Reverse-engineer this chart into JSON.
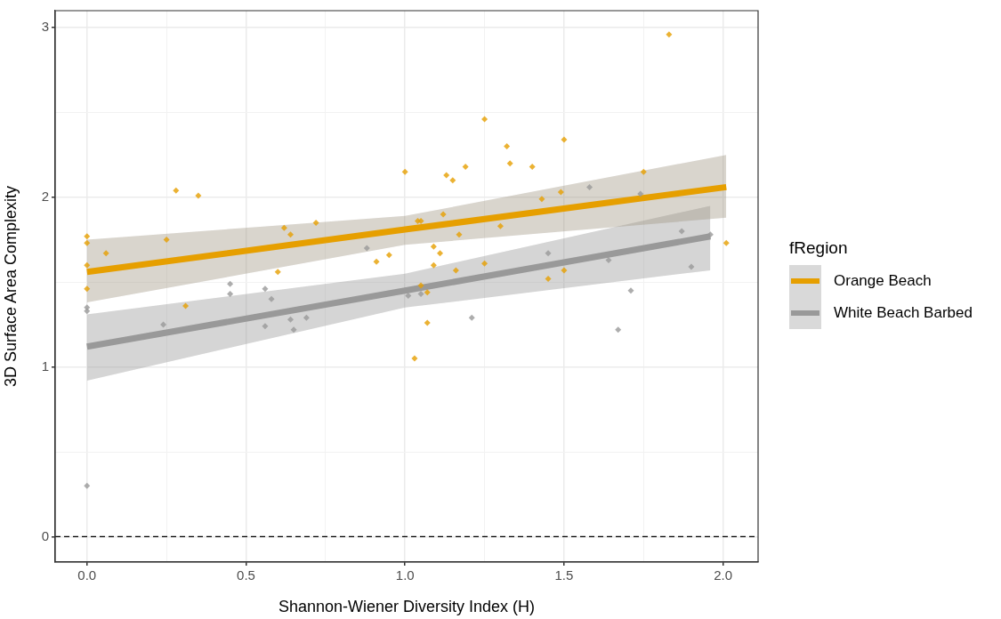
{
  "chart_data": {
    "type": "scatter",
    "xlabel": "Shannon-Wiener Diversity Index (H)",
    "ylabel": "3D Surface Area Complexity",
    "legend_title": "fRegion",
    "xlim": [
      -0.1,
      2.11
    ],
    "ylim": [
      -0.15,
      3.1
    ],
    "xticks": [
      {
        "value": 0,
        "label": "0.0"
      },
      {
        "value": 0.25,
        "label": null
      },
      {
        "value": 0.5,
        "label": "0.5"
      },
      {
        "value": 0.75,
        "label": null
      },
      {
        "value": 1,
        "label": "1.0"
      },
      {
        "value": 1.25,
        "label": null
      },
      {
        "value": 1.5,
        "label": "1.5"
      },
      {
        "value": 1.75,
        "label": null
      },
      {
        "value": 2,
        "label": "2.0"
      }
    ],
    "yticks": [
      0,
      {
        "value": 0.5,
        "label": null
      },
      1,
      {
        "value": 1.5,
        "label": null
      },
      2,
      {
        "value": 2.5,
        "label": null
      },
      3
    ],
    "grid": true,
    "legend": "right",
    "marker": "diamond",
    "ref_lines": [
      {
        "axis": "y",
        "value": 0,
        "color": "#000000",
        "line_style": "dashed"
      }
    ],
    "series": [
      {
        "color": "#e69f00",
        "x": [
          0,
          0,
          0,
          0,
          0.06,
          0.28,
          0.35,
          0.25,
          0.31,
          0.62,
          0.64,
          0.6,
          0.72,
          0.91,
          0.95,
          1.0,
          1.25,
          1.32,
          1.33,
          1.4,
          1.5,
          1.13,
          1.15,
          1.19,
          1.04,
          1.05,
          1.12,
          1.17,
          1.3,
          1.43,
          1.49,
          1.75,
          1.09,
          1.11,
          1.09,
          1.16,
          1.25,
          1.45,
          1.5,
          1.05,
          1.07,
          1.07,
          1.03,
          2.01,
          1.83
        ],
        "values": [
          1.77,
          1.73,
          1.6,
          1.46,
          1.67,
          2.04,
          2.01,
          1.75,
          1.36,
          1.82,
          1.78,
          1.56,
          1.85,
          1.62,
          1.66,
          2.15,
          2.46,
          2.3,
          2.2,
          2.18,
          2.34,
          2.13,
          2.1,
          2.18,
          1.86,
          1.86,
          1.9,
          1.78,
          1.83,
          1.99,
          2.03,
          2.15,
          1.71,
          1.67,
          1.6,
          1.57,
          1.61,
          1.52,
          1.57,
          1.48,
          1.44,
          1.26,
          1.05,
          1.73,
          2.96
        ]
      },
      {
        "color": "#999999",
        "x": [
          0,
          0,
          0,
          0.24,
          0.45,
          0.45,
          0.56,
          0.58,
          0.56,
          0.64,
          0.65,
          0.69,
          0.88,
          1.01,
          1.05,
          1.21,
          1.45,
          1.58,
          1.64,
          1.67,
          1.71,
          1.74,
          1.87,
          1.9,
          1.96
        ],
        "values": [
          1.35,
          1.33,
          0.3,
          1.25,
          1.49,
          1.43,
          1.46,
          1.4,
          1.24,
          1.28,
          1.22,
          1.29,
          1.7,
          1.42,
          1.43,
          1.29,
          1.67,
          2.06,
          1.63,
          1.22,
          1.45,
          2.02,
          1.8,
          1.59,
          1.78
        ]
      },
      {
        "type": "line",
        "name": "Orange Beach",
        "color": "#e69f00",
        "marker": "none",
        "x": [
          0,
          1,
          2.01
        ],
        "values": [
          1.56,
          1.81,
          2.06
        ],
        "lower": [
          1.38,
          1.72,
          1.88
        ],
        "upper": [
          1.75,
          1.89,
          2.25
        ]
      },
      {
        "type": "line",
        "name": "White Beach Barbed",
        "color": "#999999",
        "marker": "none",
        "x": [
          0,
          1,
          1.96
        ],
        "values": [
          1.12,
          1.45,
          1.77
        ],
        "lower": [
          0.92,
          1.35,
          1.57
        ],
        "upper": [
          1.31,
          1.55,
          1.95
        ]
      }
    ]
  }
}
